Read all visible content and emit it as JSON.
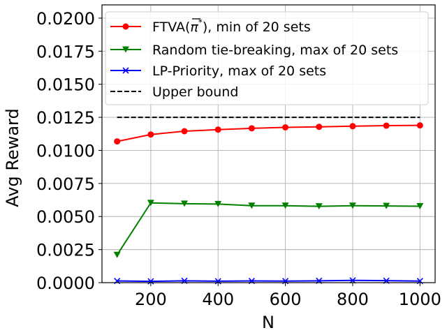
{
  "chart_data": {
    "type": "line",
    "title": "",
    "xlabel": "N",
    "ylabel": "Avg Reward",
    "xlim": [
      55,
      1045
    ],
    "ylim": [
      0,
      0.021
    ],
    "xticks": [
      200,
      400,
      600,
      800,
      1000
    ],
    "xtick_labels": [
      "200",
      "400",
      "600",
      "800",
      "1000"
    ],
    "yticks": [
      0.0,
      0.0025,
      0.005,
      0.0075,
      0.01,
      0.0125,
      0.015,
      0.0175,
      0.02
    ],
    "ytick_labels": [
      "0.0000",
      "0.0025",
      "0.0050",
      "0.0075",
      "0.0100",
      "0.0125",
      "0.0150",
      "0.0175",
      "0.0200"
    ],
    "grid": true,
    "legend_position": "top-right",
    "x": [
      100,
      200,
      300,
      400,
      500,
      600,
      700,
      800,
      900,
      1000
    ],
    "series": [
      {
        "name": "FTVA(π*), min of 20 sets",
        "label_main": "FTVA(",
        "label_pi": "π",
        "label_sup": "*",
        "label_tail": "), min of 20 sets",
        "color": "#ff0000",
        "marker": "circle",
        "linestyle": "solid",
        "values": [
          0.01068,
          0.0112,
          0.01145,
          0.01157,
          0.01167,
          0.01174,
          0.01178,
          0.01183,
          0.01187,
          0.01189
        ]
      },
      {
        "name": "Random tie-breaking, max of 20 sets",
        "color": "#008000",
        "marker": "triangle-down",
        "linestyle": "solid",
        "values": [
          0.0021,
          0.00603,
          0.00597,
          0.00594,
          0.00582,
          0.00582,
          0.00577,
          0.00582,
          0.0058,
          0.00578
        ]
      },
      {
        "name": "LP-Priority, max of 20 sets",
        "color": "#0000ff",
        "marker": "x",
        "linestyle": "solid",
        "values": [
          0.00013,
          0.0001,
          0.00014,
          0.00011,
          0.00013,
          0.00012,
          0.00014,
          0.00017,
          0.00015,
          0.00012
        ]
      },
      {
        "name": "Upper bound",
        "color": "#000000",
        "marker": "none",
        "linestyle": "dashed",
        "values": [
          0.0125,
          0.0125,
          0.0125,
          0.0125,
          0.0125,
          0.0125,
          0.0125,
          0.0125,
          0.0125,
          0.0125
        ]
      }
    ]
  }
}
